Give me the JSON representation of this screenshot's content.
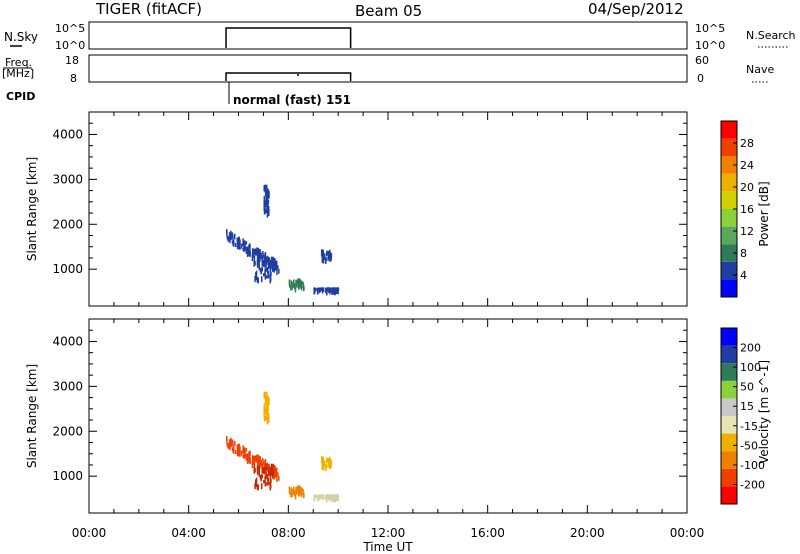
{
  "header": {
    "station": "TIGER (fitACF)",
    "beam": "Beam 05",
    "date": "04/Sep/2012"
  },
  "panels": {
    "nsky": {
      "label": "N.Sky",
      "tick_top": "10^5",
      "tick_bottom": "10^0",
      "right_label": "N.Search",
      "right_tick_top": "10^5",
      "right_tick_bottom": "10^0",
      "on_interval_hours": [
        5.5,
        10.5
      ]
    },
    "freq": {
      "label_line1": "Freq.",
      "label_line2": "[MHz]",
      "tick_top": "18",
      "tick_bottom": "8",
      "right_label": "Nave",
      "right_tick_top": "60",
      "right_tick_bottom": "0",
      "on_interval_hours": [
        5.5,
        10.5
      ]
    },
    "cpid": {
      "label": "CPID",
      "program": "normal (fast) 151",
      "start_hour": 5.5
    }
  },
  "chart_data": [
    {
      "type": "heatmap",
      "name": "power",
      "ylabel": "Slant Range [km]",
      "ylim": [
        180,
        4500
      ],
      "yticks": [
        "1000",
        "2000",
        "3000",
        "4000"
      ],
      "xlim_hours": [
        0,
        24
      ],
      "colorbar_label": "Power [dB]",
      "colorbar_ticks": [
        "4",
        "8",
        "12",
        "16",
        "20",
        "24",
        "28"
      ],
      "colorbar_colors": [
        "#0000ff",
        "#1e3fa0",
        "#2e7a5a",
        "#5aa85a",
        "#8ad23c",
        "#d2d200",
        "#f0b000",
        "#f08000",
        "#f04000",
        "#ff0000"
      ],
      "scatter_clusters": [
        {
          "t": [
            5.5,
            7.6
          ],
          "range": [
            1100,
            1800
          ],
          "color": "#1e3fa0"
        },
        {
          "t": [
            6.6,
            7.4
          ],
          "range": [
            800,
            1300
          ],
          "color": "#1e3fa0"
        },
        {
          "t": [
            8.0,
            8.6
          ],
          "range": [
            600,
            800
          ],
          "color": "#2e7a5a"
        },
        {
          "t": [
            9.3,
            9.7
          ],
          "range": [
            1250,
            1450
          ],
          "color": "#1e3fa0"
        },
        {
          "t": [
            7.0,
            7.2
          ],
          "range": [
            2300,
            2900
          ],
          "color": "#1e3fa0"
        },
        {
          "t": [
            9.0,
            10.0
          ],
          "range": [
            580,
            600
          ],
          "color": "#1e3fa0"
        }
      ]
    },
    {
      "type": "heatmap",
      "name": "velocity",
      "ylabel": "Slant Range [km]",
      "ylim": [
        180,
        4500
      ],
      "yticks": [
        "1000",
        "2000",
        "3000",
        "4000"
      ],
      "xlim_hours": [
        0,
        24
      ],
      "xticks": [
        "00:00",
        "04:00",
        "08:00",
        "12:00",
        "16:00",
        "20:00",
        "00:00"
      ],
      "xlabel": "Time UT",
      "colorbar_label": "Velocity [m s^-1]",
      "colorbar_ticks": [
        "-200",
        "-100",
        "-50",
        "-15",
        "15",
        "50",
        "100",
        "200"
      ],
      "colorbar_colors": [
        "#ff0000",
        "#f04000",
        "#f08000",
        "#f0b000",
        "#e6e6b4",
        "#c8c8c8",
        "#8ad23c",
        "#2e7a5a",
        "#1e3fa0",
        "#0000ff"
      ],
      "scatter_clusters": [
        {
          "t": [
            5.5,
            7.6
          ],
          "range": [
            1100,
            1800
          ],
          "color": "#f04000"
        },
        {
          "t": [
            6.6,
            7.4
          ],
          "range": [
            800,
            1300
          ],
          "color": "#c82800"
        },
        {
          "t": [
            8.0,
            8.6
          ],
          "range": [
            600,
            800
          ],
          "color": "#f08000"
        },
        {
          "t": [
            9.3,
            9.7
          ],
          "range": [
            1250,
            1450
          ],
          "color": "#f0b000"
        },
        {
          "t": [
            7.0,
            7.2
          ],
          "range": [
            2300,
            2900
          ],
          "color": "#f0b000"
        },
        {
          "t": [
            9.0,
            10.0
          ],
          "range": [
            580,
            600
          ],
          "color": "#d2d2a0"
        }
      ]
    }
  ]
}
